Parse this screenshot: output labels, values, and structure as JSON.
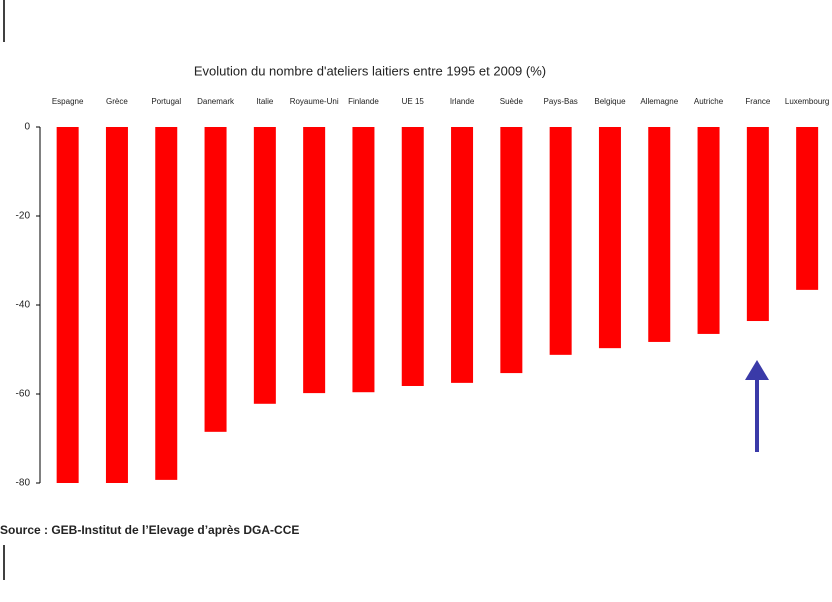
{
  "chart_data": {
    "type": "bar",
    "title": "Evolution du nombre d'ateliers laitiers entre 1995 et 2009 (%)",
    "categories": [
      "Espagne",
      "Grèce",
      "Portugal",
      "Danemark",
      "Italie",
      "Royaume-Uni",
      "Finlande",
      "UE 15",
      "Irlande",
      "Suède",
      "Pays-Bas",
      "Belgique",
      "Allemagne",
      "Autriche",
      "France",
      "Luxembourg"
    ],
    "values": [
      -80,
      -80,
      -79.3,
      -68.5,
      -62.2,
      -59.8,
      -59.6,
      -58.2,
      -57.5,
      -55.3,
      -51.2,
      -49.7,
      -48.3,
      -46.5,
      -43.6,
      -36.6
    ],
    "color": "#ff0000",
    "ylim": [
      -80,
      0
    ],
    "yticks": [
      0,
      -20,
      -40,
      -60,
      -80
    ],
    "source": "Source : GEB-Institut de l’Elevage d’après DGA-CCE"
  }
}
